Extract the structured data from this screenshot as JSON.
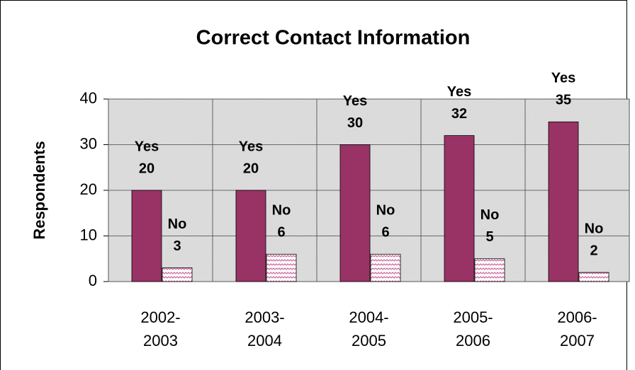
{
  "chart_data": {
    "type": "bar",
    "title": "Correct Contact Information",
    "y_label": "Respondents",
    "categories": [
      "2002-2003",
      "2003-2004",
      "2004-2005",
      "2005-2006",
      "2006-2007"
    ],
    "series": [
      {
        "name": "Yes",
        "color": "#993366",
        "values": [
          20,
          20,
          30,
          32,
          35
        ]
      },
      {
        "name": "No",
        "color": "#cc6699",
        "values": [
          3,
          6,
          6,
          5,
          2
        ]
      }
    ],
    "ylim": [
      0,
      40
    ],
    "yticks": [
      0,
      10,
      20,
      30,
      40
    ],
    "grid": true
  }
}
